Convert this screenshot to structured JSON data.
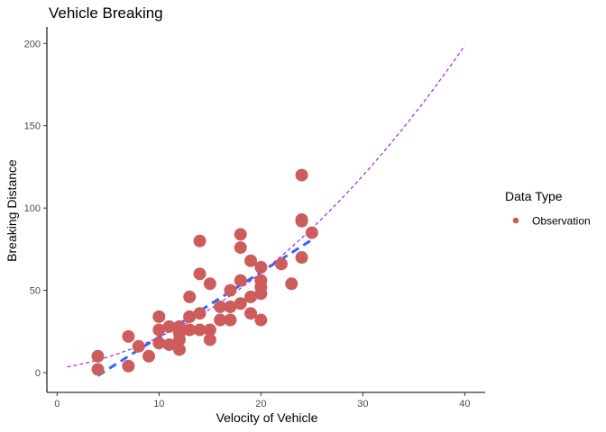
{
  "chart_data": {
    "type": "scatter",
    "title": "Vehicle Breaking",
    "xlabel": "Velocity of Vehicle",
    "ylabel": "Breaking Distance",
    "xlim": [
      -1,
      42
    ],
    "ylim": [
      -12,
      210
    ],
    "x_ticks": [
      0,
      10,
      20,
      30,
      40
    ],
    "y_ticks": [
      0,
      50,
      100,
      150,
      200
    ],
    "grid": false,
    "legend": {
      "title": "Data Type",
      "position": "right",
      "entries": [
        {
          "label": "Observation",
          "color": "#cd5c5c"
        }
      ]
    },
    "series": [
      {
        "name": "Observation",
        "color": "#cd5c5c",
        "points": [
          [
            4,
            2
          ],
          [
            4,
            10
          ],
          [
            7,
            4
          ],
          [
            7,
            22
          ],
          [
            8,
            16
          ],
          [
            9,
            10
          ],
          [
            10,
            18
          ],
          [
            10,
            26
          ],
          [
            10,
            34
          ],
          [
            11,
            17
          ],
          [
            11,
            28
          ],
          [
            12,
            14
          ],
          [
            12,
            20
          ],
          [
            12,
            24
          ],
          [
            12,
            28
          ],
          [
            13,
            26
          ],
          [
            13,
            34
          ],
          [
            13,
            34
          ],
          [
            13,
            46
          ],
          [
            14,
            26
          ],
          [
            14,
            36
          ],
          [
            14,
            60
          ],
          [
            14,
            80
          ],
          [
            15,
            20
          ],
          [
            15,
            26
          ],
          [
            15,
            54
          ],
          [
            16,
            32
          ],
          [
            16,
            40
          ],
          [
            17,
            32
          ],
          [
            17,
            40
          ],
          [
            17,
            50
          ],
          [
            18,
            42
          ],
          [
            18,
            56
          ],
          [
            18,
            76
          ],
          [
            18,
            84
          ],
          [
            19,
            36
          ],
          [
            19,
            46
          ],
          [
            19,
            68
          ],
          [
            20,
            32
          ],
          [
            20,
            48
          ],
          [
            20,
            52
          ],
          [
            20,
            56
          ],
          [
            20,
            64
          ],
          [
            22,
            66
          ],
          [
            23,
            54
          ],
          [
            24,
            70
          ],
          [
            24,
            92
          ],
          [
            24,
            93
          ],
          [
            24,
            120
          ],
          [
            25,
            85
          ]
        ]
      }
    ],
    "fits": [
      {
        "kind": "linear",
        "style": "thick-dashed",
        "color": "#3366ff",
        "x": [
          4,
          25
        ],
        "intercept": -17.58,
        "slope": 3.932
      },
      {
        "kind": "quadratic",
        "style": "thin-dashed",
        "color": "#a020f0",
        "x": [
          1,
          40
        ],
        "coefficients": [
          2.47,
          0.913,
          0.0998
        ]
      }
    ]
  }
}
